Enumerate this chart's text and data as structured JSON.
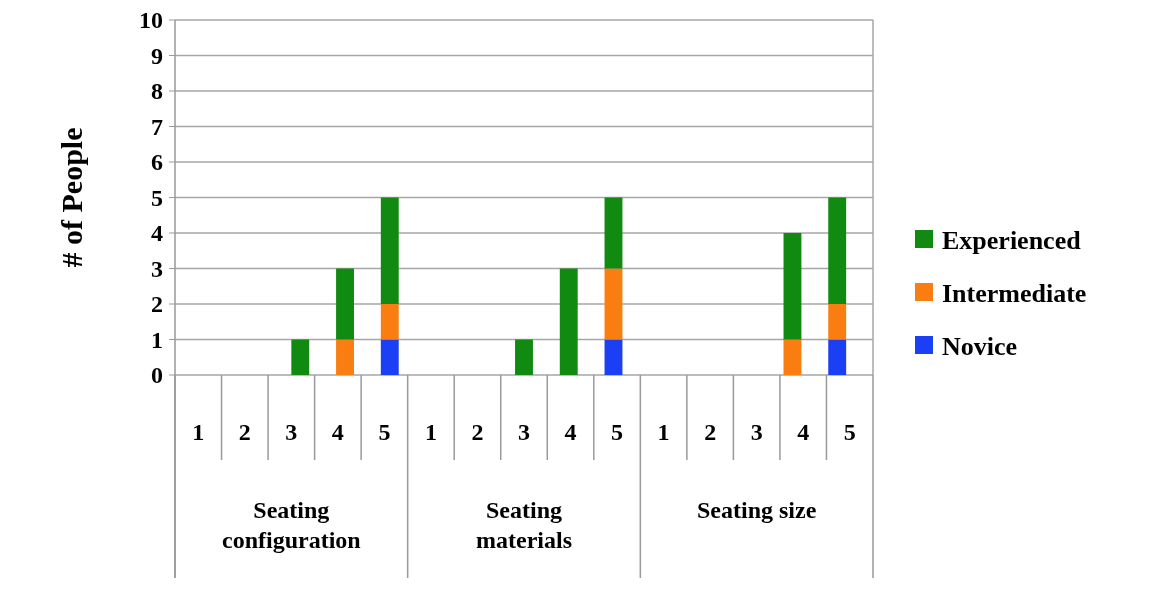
{
  "chart_data": {
    "type": "bar",
    "stacked": true,
    "ylabel": "# of People",
    "categories": [
      "1",
      "2",
      "3",
      "4",
      "5",
      "1",
      "2",
      "3",
      "4",
      "5",
      "1",
      "2",
      "3",
      "4",
      "5"
    ],
    "annotations": [
      "Seating configuration",
      "Seating materials",
      "Seating size"
    ],
    "series": [
      {
        "name": "Novice",
        "color": "#1a3ff5",
        "values": [
          0,
          0,
          0,
          0,
          1,
          0,
          0,
          0,
          0,
          1,
          0,
          0,
          0,
          0,
          1
        ]
      },
      {
        "name": "Intermediate",
        "color": "#fa7d12",
        "values": [
          0,
          0,
          0,
          1,
          1,
          0,
          0,
          0,
          0,
          2,
          0,
          0,
          0,
          1,
          1
        ]
      },
      {
        "name": "Experienced",
        "color": "#118a11",
        "values": [
          0,
          0,
          1,
          2,
          3,
          0,
          0,
          1,
          3,
          2,
          0,
          0,
          0,
          3,
          3
        ]
      }
    ],
    "ylim": [
      0,
      10
    ],
    "yticks": [
      0,
      1,
      2,
      3,
      4,
      5,
      6,
      7,
      8,
      9,
      10
    ],
    "grid": "y",
    "legend": "right"
  }
}
